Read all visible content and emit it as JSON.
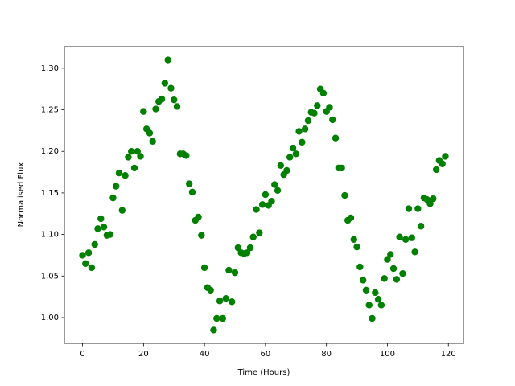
{
  "chart_data": {
    "type": "scatter",
    "xlabel": "Time (Hours)",
    "ylabel": "Normalised Flux",
    "color": "#008000",
    "x": [
      0,
      1,
      2,
      3,
      4,
      5,
      6,
      7,
      8,
      9,
      10,
      11,
      12,
      13,
      14,
      15,
      16,
      17,
      18,
      19,
      20,
      21,
      22,
      23,
      24,
      25,
      26,
      27,
      28,
      29,
      30,
      31,
      32,
      33,
      34,
      35,
      36,
      37,
      38,
      39,
      40,
      41,
      42,
      43,
      44,
      45,
      46,
      47,
      48,
      49,
      50,
      51,
      52,
      53,
      54,
      55,
      56,
      57,
      58,
      59,
      60,
      61,
      62,
      63,
      64,
      65,
      66,
      67,
      68,
      69,
      70,
      71,
      72,
      73,
      74,
      75,
      76,
      77,
      78,
      79,
      80,
      81,
      82,
      83,
      84,
      85,
      86,
      87,
      88,
      89,
      90,
      91,
      92,
      93,
      94,
      95,
      96,
      97,
      98,
      99,
      100,
      101,
      102,
      103,
      104,
      105,
      106,
      107,
      108,
      109,
      110,
      111,
      112,
      113,
      114,
      115,
      116,
      117,
      118,
      119
    ],
    "values": [
      1.075,
      1.065,
      1.078,
      1.06,
      1.088,
      1.107,
      1.119,
      1.109,
      1.099,
      1.1,
      1.144,
      1.158,
      1.174,
      1.129,
      1.171,
      1.193,
      1.2,
      1.18,
      1.2,
      1.194,
      1.248,
      1.227,
      1.222,
      1.212,
      1.251,
      1.26,
      1.263,
      1.282,
      1.31,
      1.276,
      1.262,
      1.254,
      1.197,
      1.197,
      1.195,
      1.161,
      1.151,
      1.117,
      1.121,
      1.099,
      1.06,
      1.036,
      1.033,
      0.985,
      0.999,
      1.02,
      0.999,
      1.023,
      1.057,
      1.019,
      1.054,
      1.084,
      1.078,
      1.077,
      1.078,
      1.084,
      1.097,
      1.13,
      1.102,
      1.136,
      1.148,
      1.135,
      1.14,
      1.16,
      1.153,
      1.183,
      1.172,
      1.177,
      1.193,
      1.204,
      1.197,
      1.224,
      1.211,
      1.227,
      1.237,
      1.247,
      1.246,
      1.255,
      1.275,
      1.27,
      1.248,
      1.253,
      1.238,
      1.216,
      1.18,
      1.18,
      1.147,
      1.117,
      1.12,
      1.094,
      1.085,
      1.061,
      1.045,
      1.033,
      1.015,
      0.999,
      1.03,
      1.022,
      1.015,
      1.047,
      1.07,
      1.076,
      1.059,
      1.046,
      1.097,
      1.053,
      1.094,
      1.131,
      1.096,
      1.079,
      1.131,
      1.11,
      1.144,
      1.142,
      1.137,
      1.143,
      1.178,
      1.189,
      1.185,
      1.194
    ],
    "xlim": [
      -5.95,
      124.95
    ],
    "ylim": [
      0.969,
      1.326
    ],
    "xticks": [
      0,
      20,
      40,
      60,
      80,
      100,
      120
    ],
    "yticks": [
      {
        "value": 1.0,
        "label": "1.00"
      },
      {
        "value": 1.05,
        "label": "1.05"
      },
      {
        "value": 1.1,
        "label": "1.10"
      },
      {
        "value": 1.15,
        "label": "1.15"
      },
      {
        "value": 1.2,
        "label": "1.20"
      },
      {
        "value": 1.25,
        "label": "1.25"
      },
      {
        "value": 1.3,
        "label": "1.30"
      }
    ],
    "grid": false
  }
}
